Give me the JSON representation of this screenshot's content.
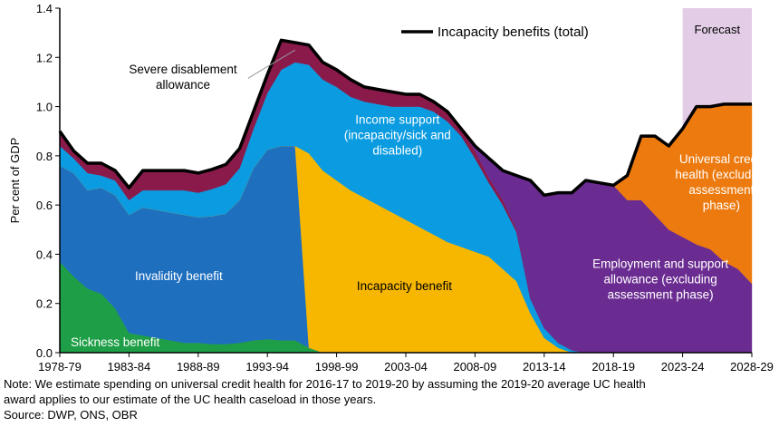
{
  "chart_data": {
    "type": "area",
    "stacked": true,
    "ylabel": "Per cent of GDP",
    "ylim": [
      0,
      1.4
    ],
    "yticks": [
      "0.0",
      "0.2",
      "0.4",
      "0.6",
      "0.8",
      "1.0",
      "1.2",
      "1.4"
    ],
    "xtick_labels": [
      "1978-79",
      "1983-84",
      "1988-89",
      "1993-94",
      "1998-99",
      "2003-04",
      "2008-09",
      "2013-14",
      "2018-19",
      "2023-24",
      "2028-29"
    ],
    "forecast_label": "Forecast",
    "forecast_start": 2023,
    "legend": {
      "label": "Incapacity benefits (total)",
      "color": "#000000",
      "position": "top"
    },
    "x": [
      1978,
      1979,
      1980,
      1981,
      1982,
      1983,
      1984,
      1985,
      1986,
      1987,
      1988,
      1989,
      1990,
      1991,
      1992,
      1993,
      1994,
      1995,
      1996,
      1997,
      1998,
      1999,
      2000,
      2001,
      2002,
      2003,
      2004,
      2005,
      2006,
      2007,
      2008,
      2009,
      2010,
      2011,
      2012,
      2013,
      2014,
      2015,
      2016,
      2017,
      2018,
      2019,
      2020,
      2021,
      2022,
      2023,
      2024,
      2025,
      2026,
      2027,
      2028
    ],
    "series": [
      {
        "name": "Sickness benefit",
        "color": "#1e9e46",
        "values": [
          0.37,
          0.31,
          0.26,
          0.24,
          0.18,
          0.08,
          0.07,
          0.06,
          0.05,
          0.04,
          0.04,
          0.035,
          0.035,
          0.04,
          0.05,
          0.055,
          0.05,
          0.05,
          0.02,
          0,
          0,
          0,
          0,
          0,
          0,
          0,
          0,
          0,
          0,
          0,
          0,
          0,
          0,
          0,
          0,
          0,
          0,
          0,
          0,
          0,
          0,
          0,
          0,
          0,
          0,
          0,
          0,
          0,
          0,
          0,
          0
        ]
      },
      {
        "name": "Invalidity benefit",
        "color": "#1f6fbf",
        "values": [
          0.39,
          0.42,
          0.4,
          0.43,
          0.46,
          0.48,
          0.52,
          0.52,
          0.52,
          0.52,
          0.51,
          0.52,
          0.53,
          0.58,
          0.7,
          0.77,
          0.79,
          0.79,
          0,
          0,
          0,
          0,
          0,
          0,
          0,
          0,
          0,
          0,
          0,
          0,
          0,
          0,
          0,
          0,
          0,
          0,
          0,
          0,
          0,
          0,
          0,
          0,
          0,
          0,
          0,
          0,
          0,
          0,
          0,
          0,
          0
        ]
      },
      {
        "name": "Incapacity benefit",
        "color": "#f7b700",
        "values": [
          0,
          0,
          0,
          0,
          0,
          0,
          0,
          0,
          0,
          0,
          0,
          0,
          0,
          0,
          0,
          0,
          0,
          0,
          0.79,
          0.74,
          0.7,
          0.66,
          0.63,
          0.6,
          0.57,
          0.54,
          0.51,
          0.48,
          0.45,
          0.43,
          0.41,
          0.39,
          0.34,
          0.29,
          0.16,
          0.06,
          0.02,
          0,
          0,
          0,
          0,
          0,
          0,
          0,
          0,
          0,
          0,
          0,
          0,
          0,
          0
        ]
      },
      {
        "name": "Income support (incapacity/sick and disabled)",
        "color": "#0a9be0",
        "values": [
          0.08,
          0.06,
          0.07,
          0.05,
          0.06,
          0.06,
          0.07,
          0.08,
          0.09,
          0.1,
          0.1,
          0.11,
          0.12,
          0.13,
          0.16,
          0.23,
          0.31,
          0.34,
          0.36,
          0.37,
          0.38,
          0.38,
          0.39,
          0.41,
          0.43,
          0.46,
          0.49,
          0.5,
          0.49,
          0.45,
          0.38,
          0.3,
          0.26,
          0.2,
          0.06,
          0.04,
          0.02,
          0.01,
          0,
          0,
          0,
          0,
          0,
          0,
          0,
          0,
          0,
          0,
          0,
          0,
          0
        ]
      },
      {
        "name": "Severe disablement allowance",
        "color": "#8a1a4a",
        "values": [
          0.06,
          0.03,
          0.04,
          0.05,
          0.04,
          0.05,
          0.08,
          0.08,
          0.08,
          0.08,
          0.08,
          0.08,
          0.08,
          0.08,
          0.07,
          0.08,
          0.12,
          0.08,
          0.08,
          0.07,
          0.07,
          0.07,
          0.06,
          0.06,
          0.06,
          0.05,
          0.05,
          0.04,
          0.04,
          0.03,
          0.03,
          0.02,
          0.02,
          0.01,
          0,
          0,
          0,
          0,
          0,
          0,
          0,
          0,
          0,
          0,
          0,
          0,
          0,
          0,
          0,
          0,
          0
        ]
      },
      {
        "name": "Employment and support allowance (excluding assessment phase)",
        "color": "#6b2c91",
        "values": [
          0,
          0,
          0,
          0,
          0,
          0,
          0,
          0,
          0,
          0,
          0,
          0,
          0,
          0,
          0,
          0,
          0,
          0,
          0,
          0,
          0,
          0,
          0,
          0,
          0,
          0,
          0,
          0,
          0,
          0,
          0.02,
          0.08,
          0.12,
          0.22,
          0.48,
          0.54,
          0.61,
          0.64,
          0.7,
          0.69,
          0.68,
          0.62,
          0.62,
          0.56,
          0.5,
          0.47,
          0.44,
          0.42,
          0.37,
          0.34,
          0.28
        ]
      },
      {
        "name": "Universal credit health (excluding assessment phase)",
        "color": "#ec7a0e",
        "values": [
          0,
          0,
          0,
          0,
          0,
          0,
          0,
          0,
          0,
          0,
          0,
          0,
          0,
          0,
          0,
          0,
          0,
          0,
          0,
          0,
          0,
          0,
          0,
          0,
          0,
          0,
          0,
          0,
          0,
          0,
          0,
          0,
          0,
          0,
          0,
          0,
          0,
          0,
          0,
          0,
          0,
          0.1,
          0.26,
          0.32,
          0.34,
          0.44,
          0.56,
          0.58,
          0.64,
          0.67,
          0.73
        ]
      }
    ],
    "total": {
      "name": "Incapacity benefits (total)",
      "values": [
        0.9,
        0.82,
        0.77,
        0.77,
        0.74,
        0.67,
        0.74,
        0.74,
        0.74,
        0.74,
        0.73,
        0.745,
        0.765,
        0.83,
        0.98,
        1.13,
        1.27,
        1.26,
        1.25,
        1.18,
        1.15,
        1.11,
        1.08,
        1.07,
        1.06,
        1.05,
        1.05,
        1.02,
        0.98,
        0.91,
        0.84,
        0.79,
        0.74,
        0.72,
        0.7,
        0.64,
        0.65,
        0.65,
        0.7,
        0.69,
        0.68,
        0.72,
        0.88,
        0.88,
        0.84,
        0.91,
        1.0,
        1.0,
        1.01,
        1.01,
        1.01
      ]
    },
    "annotations": [
      {
        "lines": [
          "Severe disablement",
          "allowance"
        ],
        "color": "#000000"
      },
      {
        "lines": [
          "Income support",
          "(incapacity/sick and",
          "disabled)"
        ],
        "color": "#ffffff"
      },
      {
        "lines": [
          "Invalidity benefit"
        ],
        "color": "#ffffff"
      },
      {
        "lines": [
          "Incapacity benefit"
        ],
        "color": "#000000"
      },
      {
        "lines": [
          "Sickness benefit"
        ],
        "color": "#ffffff"
      },
      {
        "lines": [
          "Employment and support",
          "allowance (excluding",
          "assessment phase)"
        ],
        "color": "#ffffff"
      },
      {
        "lines": [
          "Universal credit",
          "health (excluding",
          "assessment",
          "phase)"
        ],
        "color": "#ffffff"
      }
    ]
  },
  "notes": {
    "line1": "Note: We estimate spending on universal credit health for 2016-17 to 2019-20 by assuming the 2019-20 average UC health",
    "line2": "award applies to our estimate of the UC health caseload in those years.",
    "source": "Source: DWP, ONS, OBR"
  },
  "colors": {
    "forecast_shade": "#e2cce6",
    "axis": "#000000"
  }
}
